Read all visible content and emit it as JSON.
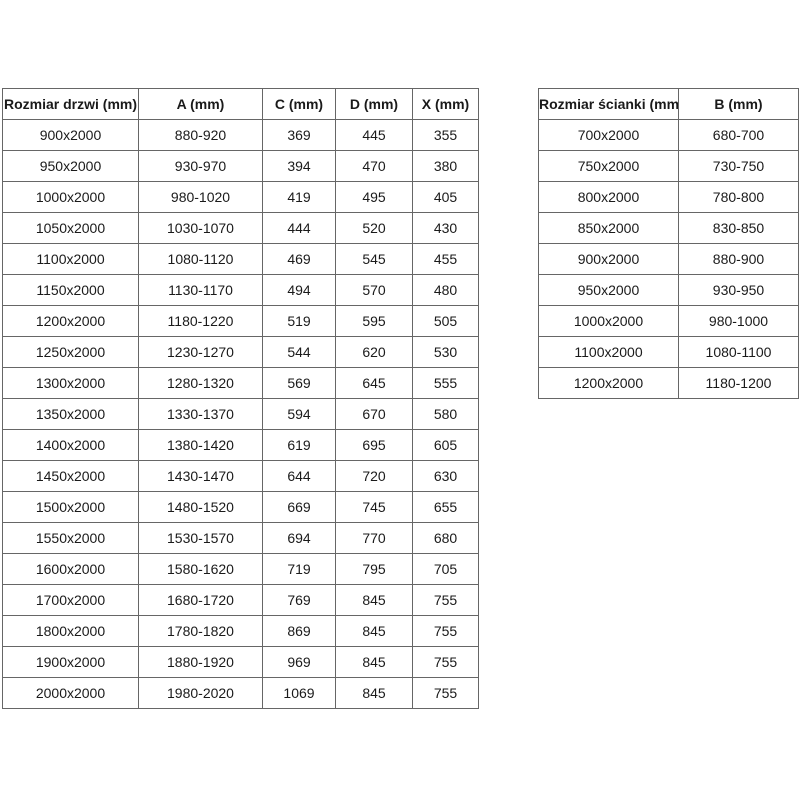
{
  "colors": {
    "border": "#666666",
    "text": "#1a1a1a",
    "background": "#ffffff"
  },
  "chart_data": [
    {
      "type": "table",
      "name": "door-sizes",
      "columns": [
        "Rozmiar drzwi (mm)",
        "A (mm)",
        "C (mm)",
        "D (mm)",
        "X (mm)"
      ],
      "rows": [
        [
          "900x2000",
          "880-920",
          "369",
          "445",
          "355"
        ],
        [
          "950x2000",
          "930-970",
          "394",
          "470",
          "380"
        ],
        [
          "1000x2000",
          "980-1020",
          "419",
          "495",
          "405"
        ],
        [
          "1050x2000",
          "1030-1070",
          "444",
          "520",
          "430"
        ],
        [
          "1100x2000",
          "1080-1120",
          "469",
          "545",
          "455"
        ],
        [
          "1150x2000",
          "1130-1170",
          "494",
          "570",
          "480"
        ],
        [
          "1200x2000",
          "1180-1220",
          "519",
          "595",
          "505"
        ],
        [
          "1250x2000",
          "1230-1270",
          "544",
          "620",
          "530"
        ],
        [
          "1300x2000",
          "1280-1320",
          "569",
          "645",
          "555"
        ],
        [
          "1350x2000",
          "1330-1370",
          "594",
          "670",
          "580"
        ],
        [
          "1400x2000",
          "1380-1420",
          "619",
          "695",
          "605"
        ],
        [
          "1450x2000",
          "1430-1470",
          "644",
          "720",
          "630"
        ],
        [
          "1500x2000",
          "1480-1520",
          "669",
          "745",
          "655"
        ],
        [
          "1550x2000",
          "1530-1570",
          "694",
          "770",
          "680"
        ],
        [
          "1600x2000",
          "1580-1620",
          "719",
          "795",
          "705"
        ],
        [
          "1700x2000",
          "1680-1720",
          "769",
          "845",
          "755"
        ],
        [
          "1800x2000",
          "1780-1820",
          "869",
          "845",
          "755"
        ],
        [
          "1900x2000",
          "1880-1920",
          "969",
          "845",
          "755"
        ],
        [
          "2000x2000",
          "1980-2020",
          "1069",
          "845",
          "755"
        ]
      ]
    },
    {
      "type": "table",
      "name": "wall-sizes",
      "columns": [
        "Rozmiar ścianki (mm)",
        "B (mm)"
      ],
      "rows": [
        [
          "700x2000",
          "680-700"
        ],
        [
          "750x2000",
          "730-750"
        ],
        [
          "800x2000",
          "780-800"
        ],
        [
          "850x2000",
          "830-850"
        ],
        [
          "900x2000",
          "880-900"
        ],
        [
          "950x2000",
          "930-950"
        ],
        [
          "1000x2000",
          "980-1000"
        ],
        [
          "1100x2000",
          "1080-1100"
        ],
        [
          "1200x2000",
          "1180-1200"
        ]
      ]
    }
  ]
}
